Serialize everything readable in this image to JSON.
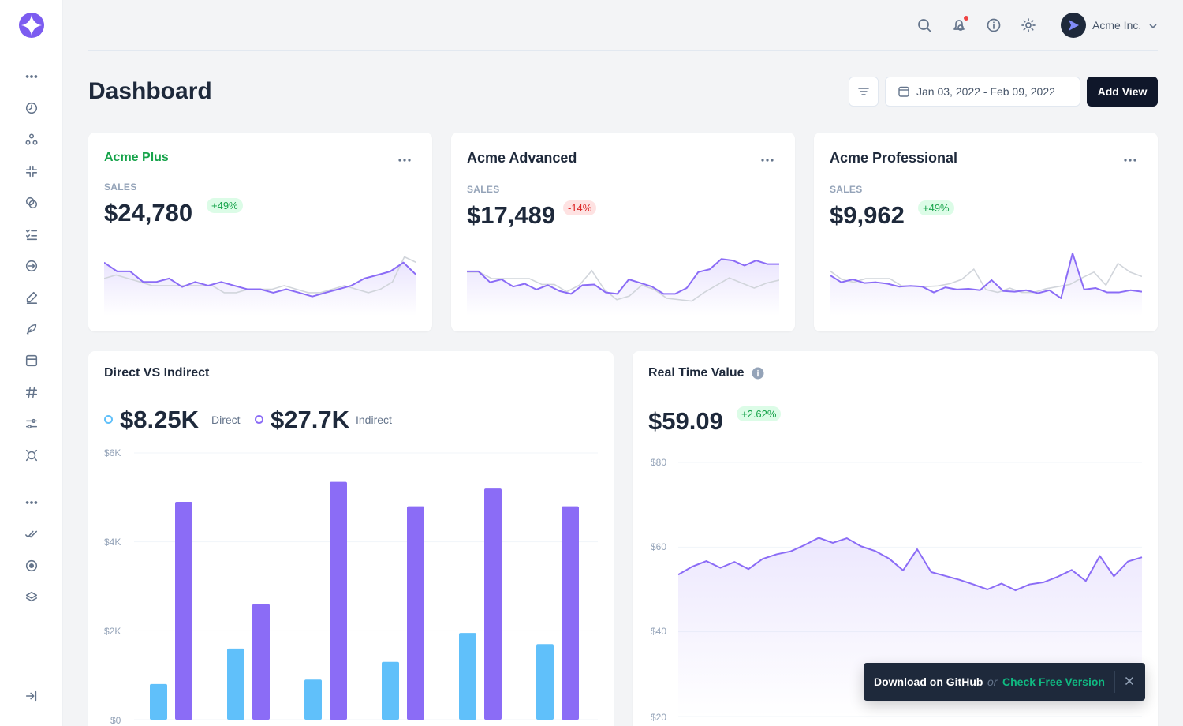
{
  "sidebar": {
    "icons": [
      "more-icon",
      "timer-icon",
      "apps-icon",
      "shrink-icon",
      "layers-circle-icon",
      "checklist-icon",
      "login-icon",
      "pen-icon",
      "feather-icon",
      "calendar-icon",
      "hashtag-icon",
      "sliders-icon",
      "focus-icon",
      "more-icon",
      "double-check-icon",
      "target-icon",
      "stack-icon",
      "collapse-sidebar-icon"
    ]
  },
  "header": {
    "user_name": "Acme Inc."
  },
  "page": {
    "title": "Dashboard",
    "date_range": "Jan 03, 2022 - Feb 09, 2022",
    "add_view": "Add View"
  },
  "cards": [
    {
      "title": "Acme Plus",
      "sales_label": "SALES",
      "value": "$24,780",
      "change": "+49%",
      "trend": "up"
    },
    {
      "title": "Acme Advanced",
      "sales_label": "SALES",
      "value": "$17,489",
      "change": "-14%",
      "trend": "down"
    },
    {
      "title": "Acme Professional",
      "sales_label": "SALES",
      "value": "$9,962",
      "change": "+49%",
      "trend": "up"
    }
  ],
  "direct_panel": {
    "title": "Direct VS Indirect",
    "direct_value": "$8.25K",
    "direct_label": "Direct",
    "indirect_value": "$27.7K",
    "indirect_label": "Indirect"
  },
  "realtime_panel": {
    "title": "Real Time Value",
    "value": "$59.09",
    "change": "+2.62%"
  },
  "toast": {
    "github": "Download on GitHub",
    "or": "or",
    "free": "Check Free Version"
  },
  "colors": {
    "accent": "#8b6cf6",
    "direct": "#60c0fa",
    "positive": "#16a34a",
    "negative": "#dc2626"
  },
  "chart_data": [
    {
      "type": "line",
      "name": "Acme Plus",
      "series": [
        {
          "values": [
            732,
            610,
            610,
            464,
            464,
            512,
            396,
            464,
            414,
            464,
            414,
            364,
            364,
            316,
            364,
            316,
            264,
            316,
            364,
            414,
            512,
            560,
            610,
            732,
            560
          ]
        },
        {
          "values": [
            512,
            560,
            512,
            464,
            414,
            414,
            414,
            414,
            414,
            414,
            316,
            316,
            364,
            364,
            364,
            414,
            364,
            316,
            316,
            364,
            414,
            364,
            316,
            364,
            464,
            810,
            732
          ]
        }
      ],
      "ylim": [
        0,
        1000
      ]
    },
    {
      "type": "line",
      "name": "Acme Advanced",
      "series": [
        {
          "values": [
            610,
            610,
            460,
            500,
            400,
            440,
            360,
            420,
            340,
            300,
            420,
            430,
            320,
            300,
            500,
            450,
            400,
            300,
            300,
            380,
            600,
            640,
            780,
            760,
            690,
            760,
            710,
            710
          ]
        },
        {
          "values": [
            600,
            600,
            510,
            510,
            510,
            510,
            430,
            430,
            330,
            420,
            620,
            360,
            220,
            270,
            420,
            360,
            240,
            220,
            200,
            320,
            420,
            520,
            450,
            380,
            450,
            490
          ]
        }
      ],
      "ylim": [
        0,
        1000
      ]
    },
    {
      "type": "line",
      "name": "Acme Professional",
      "series": [
        {
          "values": [
            560,
            460,
            500,
            450,
            460,
            440,
            400,
            410,
            400,
            320,
            390,
            360,
            370,
            350,
            490,
            340,
            330,
            350,
            310,
            350,
            240,
            860,
            360,
            380,
            320,
            320,
            350,
            330
          ]
        },
        {
          "values": [
            620,
            500,
            460,
            510,
            510,
            510,
            410,
            410,
            400,
            410,
            440,
            500,
            640,
            360,
            320,
            380,
            320,
            320,
            370,
            400,
            430,
            520,
            600,
            420,
            720,
            600,
            540
          ]
        }
      ],
      "ylim": [
        0,
        1000
      ]
    },
    {
      "type": "bar",
      "name": "Direct VS Indirect",
      "series": [
        {
          "name": "Direct",
          "values": [
            800,
            1600,
            900,
            1300,
            1950,
            1700
          ]
        },
        {
          "name": "Indirect",
          "values": [
            4900,
            2600,
            5350,
            4800,
            5200,
            4800
          ]
        }
      ],
      "yticks": [
        "$6K",
        "$4K",
        "$2K",
        "$0"
      ],
      "ylim": [
        0,
        6000
      ]
    },
    {
      "type": "area",
      "name": "Real Time Value",
      "values": [
        53.5,
        55.4,
        56.7,
        55.1,
        56.5,
        54.8,
        57.2,
        58.3,
        59.0,
        60.5,
        62.2,
        61.0,
        62.1,
        60.2,
        59.1,
        57.3,
        54.5,
        59.5,
        54.1,
        53.2,
        52.3,
        51.2,
        50.0,
        51.4,
        49.8,
        51.2,
        51.7,
        53.0,
        54.6,
        52.0,
        57.9,
        53.1,
        56.6,
        57.6
      ],
      "yticks": [
        "$80",
        "$60",
        "$40",
        "$20"
      ],
      "ylim": [
        20,
        80
      ]
    }
  ]
}
